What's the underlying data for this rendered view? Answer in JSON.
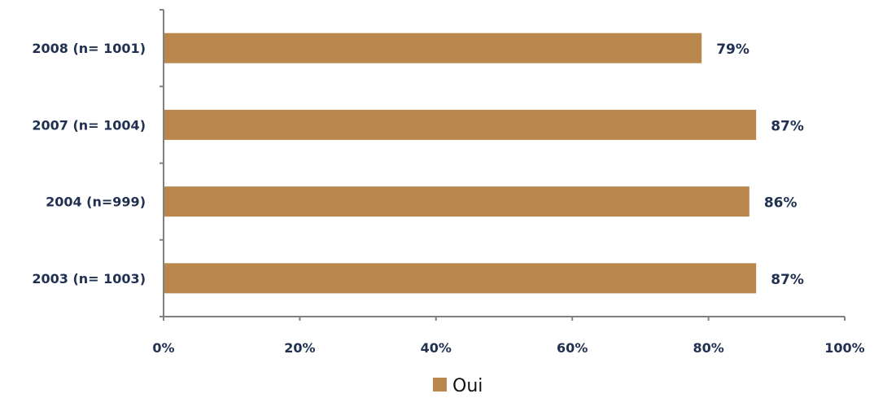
{
  "chart_data": {
    "type": "bar",
    "orientation": "horizontal",
    "categories": [
      "2008 (n= 1001)",
      "2007 (n= 1004)",
      "2004 (n=999)",
      "2003 (n= 1003)"
    ],
    "series": [
      {
        "name": "Oui",
        "values": [
          79,
          87,
          86,
          87
        ],
        "value_labels": [
          "79%",
          "87%",
          "86%",
          "87%"
        ],
        "color": "#b9874b"
      }
    ],
    "xlim": [
      0,
      100
    ],
    "x_ticks": [
      0,
      20,
      40,
      60,
      80,
      100
    ],
    "x_tick_labels": [
      "0%",
      "20%",
      "40%",
      "60%",
      "80%",
      "100%"
    ],
    "grid": false,
    "legend_position": "bottom",
    "axis_color": "#808080",
    "label_color": "#1f3050"
  }
}
